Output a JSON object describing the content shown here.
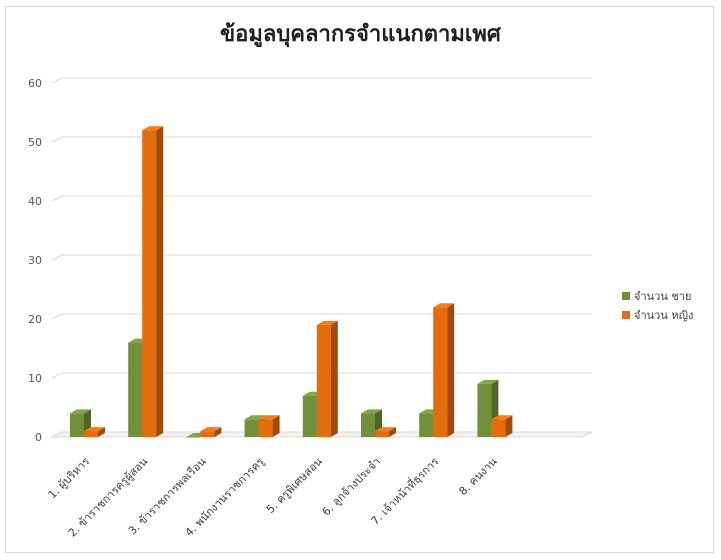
{
  "chart_data": {
    "type": "bar",
    "title": "ข้อมูลบุคลากรจำแนกตามเพศ",
    "categories": [
      "1. ผู้บริหาร",
      "2. ข้าราชการครูผู้สอน",
      "3. ข้าราชการพลเรือน",
      "4. พนักงานราชการครู",
      "5. ครูพิเศษสอน",
      "6. ลูกจ้างประจำ",
      "7. เจ้าหน้าที่ธุรการ",
      "8. คนงาน"
    ],
    "series": [
      {
        "name": "จำนวน ชาย",
        "values": [
          4,
          16,
          0,
          3,
          7,
          4,
          4,
          9
        ],
        "color": "#70913a"
      },
      {
        "name": "จำนวน หญิง",
        "values": [
          1,
          52,
          1,
          3,
          19,
          1,
          22,
          3
        ],
        "color": "#e46c0a"
      }
    ],
    "ylim": [
      0,
      60
    ],
    "yticks": [
      "0",
      "10",
      "20",
      "30",
      "40",
      "50",
      "60"
    ],
    "grid": true,
    "legend_position": "right",
    "style": "3d-column"
  }
}
